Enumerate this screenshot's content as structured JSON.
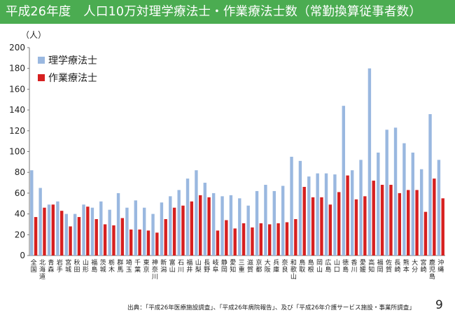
{
  "slide": {
    "title": "平成26年度　人口10万対理学療法士・作業療法士数（常勤換算従事者数）",
    "footer": "出典：「平成26年医療施設調査」、「平成26年病院報告」、及び「平成26年介護サービス施設・事業所調査」",
    "page_number": "9",
    "accent_color": "#4bac51"
  },
  "chart_data": {
    "type": "bar",
    "unit_label": "（人）",
    "ylim": [
      0,
      200
    ],
    "yticks": [
      0,
      20,
      40,
      60,
      80,
      100,
      120,
      140,
      160,
      180,
      200
    ],
    "grid": false,
    "legend_position": "top-left",
    "categories": [
      "全国",
      "北海道",
      "青森",
      "岩手",
      "宮城",
      "秋田",
      "山形",
      "福島",
      "茨城",
      "栃木",
      "群馬",
      "埼玉",
      "千葉",
      "東京",
      "神奈川",
      "新潟",
      "富山",
      "石川",
      "福井",
      "山梨",
      "長野",
      "岐阜",
      "静岡",
      "愛知",
      "三重",
      "滋賀",
      "京都",
      "大阪",
      "兵庫",
      "奈良",
      "和歌山",
      "鳥取",
      "島根",
      "岡山",
      "広島",
      "山口",
      "徳島",
      "香川",
      "愛媛",
      "高知",
      "福岡",
      "佐賀",
      "長崎",
      "熊本",
      "大分",
      "宮崎",
      "鹿児島",
      "沖縄"
    ],
    "series": [
      {
        "name": "理学療法士",
        "color": "#9ab8e0",
        "values": [
          82,
          65,
          49,
          52,
          40,
          40,
          49,
          46,
          52,
          44,
          60,
          46,
          53,
          46,
          40,
          51,
          57,
          63,
          74,
          82,
          70,
          60,
          57,
          58,
          55,
          48,
          62,
          68,
          62,
          67,
          95,
          91,
          76,
          79,
          79,
          78,
          144,
          82,
          92,
          180,
          99,
          121,
          123,
          108,
          99,
          83,
          136,
          92
        ]
      },
      {
        "name": "作業療法士",
        "color": "#d62020",
        "values": [
          37,
          46,
          49,
          43,
          28,
          37,
          47,
          35,
          30,
          29,
          36,
          25,
          25,
          24,
          22,
          35,
          46,
          48,
          52,
          58,
          56,
          24,
          34,
          26,
          31,
          27,
          31,
          30,
          31,
          32,
          35,
          66,
          56,
          56,
          49,
          61,
          77,
          54,
          57,
          72,
          68,
          68,
          60,
          63,
          63,
          42,
          74,
          55
        ]
      }
    ]
  }
}
